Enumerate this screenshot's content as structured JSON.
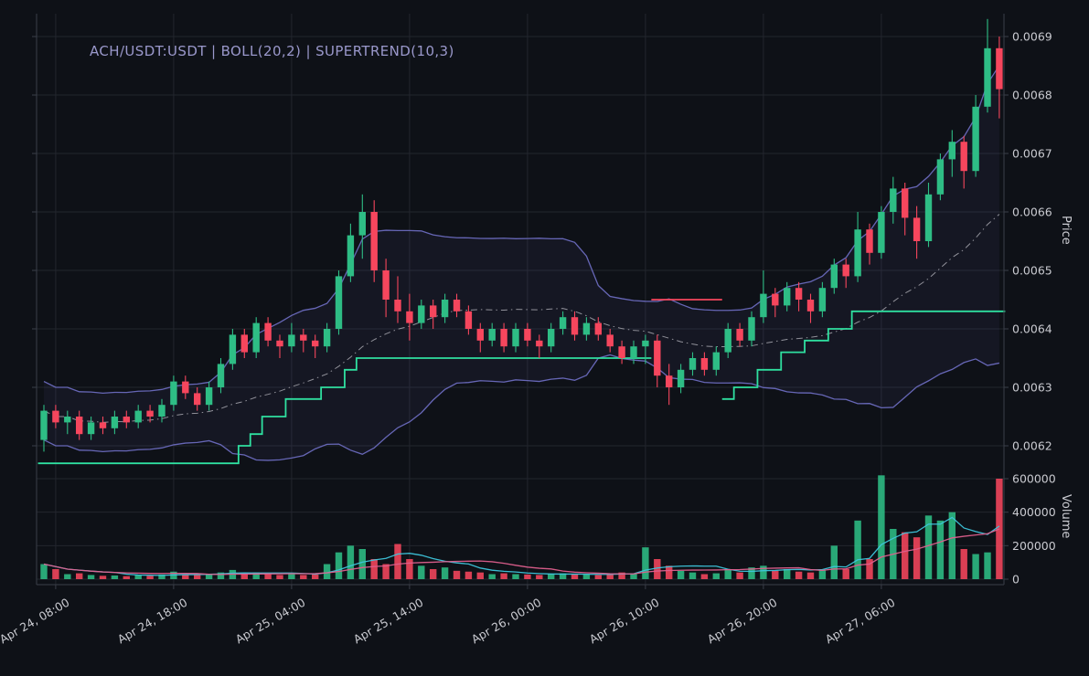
{
  "title": "ACH/USDT:USDT | BOLL(20,2) | SUPERTREND(10,3)",
  "colors": {
    "background": "#0e1117",
    "grid": "#23262e",
    "spine": "#3a3e48",
    "axis_text": "#c9cad0",
    "title_text": "#9a98cb",
    "up": "#2ebd85",
    "down": "#f6465d",
    "bollinger": "#6b6bbf",
    "bollinger_fill": "rgba(110,110,200,0.07)",
    "middle_band": "#b0b0b8",
    "supertrend_up": "#2fe0a0",
    "supertrend_down": "#f6465d",
    "volume_ma1": "#3ec6dc",
    "volume_ma2": "#e0608e"
  },
  "chart_data": {
    "type": "candlestick",
    "title": "ACH/USDT:USDT | BOLL(20,2) | SUPERTREND(10,3)",
    "ylabel": "Price",
    "ylabel_volume": "Volume",
    "grid": true,
    "price_ticks": [
      0.0062,
      0.0063,
      0.0064,
      0.0065,
      0.0066,
      0.0067,
      0.0068,
      0.0069
    ],
    "volume_ticks": [
      0,
      200000,
      400000,
      600000
    ],
    "x_ticks": [
      {
        "index": 1,
        "label": "Apr 24, 08:00"
      },
      {
        "index": 11,
        "label": "Apr 24, 18:00"
      },
      {
        "index": 21,
        "label": "Apr 25, 04:00"
      },
      {
        "index": 31,
        "label": "Apr 25, 14:00"
      },
      {
        "index": 41,
        "label": "Apr 26, 00:00"
      },
      {
        "index": 51,
        "label": "Apr 26, 10:00"
      },
      {
        "index": 61,
        "label": "Apr 26, 20:00"
      },
      {
        "index": 71,
        "label": "Apr 27, 06:00"
      }
    ],
    "candles": [
      [
        "Apr 24 07:00",
        0.00621,
        0.00627,
        0.00619,
        0.00626,
        90000
      ],
      [
        "Apr 24 08:00",
        0.00626,
        0.00627,
        0.00623,
        0.00624,
        60000
      ],
      [
        "Apr 24 09:00",
        0.00624,
        0.00626,
        0.00622,
        0.00625,
        30000
      ],
      [
        "Apr 24 10:00",
        0.00625,
        0.00626,
        0.00621,
        0.00622,
        35000
      ],
      [
        "Apr 24 11:00",
        0.00622,
        0.00625,
        0.00621,
        0.00624,
        25000
      ],
      [
        "Apr 24 12:00",
        0.00624,
        0.00625,
        0.00622,
        0.00623,
        20000
      ],
      [
        "Apr 24 13:00",
        0.00623,
        0.00626,
        0.00622,
        0.00625,
        22000
      ],
      [
        "Apr 24 14:00",
        0.00625,
        0.00626,
        0.00623,
        0.00624,
        18000
      ],
      [
        "Apr 24 15:00",
        0.00624,
        0.00627,
        0.00623,
        0.00626,
        25000
      ],
      [
        "Apr 24 16:00",
        0.00626,
        0.00627,
        0.00624,
        0.00625,
        20000
      ],
      [
        "Apr 24 17:00",
        0.00625,
        0.00628,
        0.00624,
        0.00627,
        28000
      ],
      [
        "Apr 24 18:00",
        0.00627,
        0.00632,
        0.00626,
        0.00631,
        45000
      ],
      [
        "Apr 24 19:00",
        0.00631,
        0.00632,
        0.00628,
        0.00629,
        30000
      ],
      [
        "Apr 24 20:00",
        0.00629,
        0.0063,
        0.00626,
        0.00627,
        25000
      ],
      [
        "Apr 24 21:00",
        0.00627,
        0.00631,
        0.00626,
        0.0063,
        30000
      ],
      [
        "Apr 24 22:00",
        0.0063,
        0.00635,
        0.00629,
        0.00634,
        40000
      ],
      [
        "Apr 24 23:00",
        0.00634,
        0.0064,
        0.00633,
        0.00639,
        55000
      ],
      [
        "Apr 25 00:00",
        0.00639,
        0.0064,
        0.00635,
        0.00636,
        35000
      ],
      [
        "Apr 25 01:00",
        0.00636,
        0.00642,
        0.00635,
        0.00641,
        40000
      ],
      [
        "Apr 25 02:00",
        0.00641,
        0.00642,
        0.00637,
        0.00638,
        30000
      ],
      [
        "Apr 25 03:00",
        0.00638,
        0.00639,
        0.00635,
        0.00637,
        25000
      ],
      [
        "Apr 25 04:00",
        0.00637,
        0.00641,
        0.00636,
        0.00639,
        30000
      ],
      [
        "Apr 25 05:00",
        0.00639,
        0.0064,
        0.00636,
        0.00638,
        25000
      ],
      [
        "Apr 25 06:00",
        0.00638,
        0.00639,
        0.00635,
        0.00637,
        28000
      ],
      [
        "Apr 25 07:00",
        0.00637,
        0.00641,
        0.00636,
        0.0064,
        90000
      ],
      [
        "Apr 25 08:00",
        0.0064,
        0.0065,
        0.00639,
        0.00649,
        160000
      ],
      [
        "Apr 25 09:00",
        0.00649,
        0.00658,
        0.00648,
        0.00656,
        200000
      ],
      [
        "Apr 25 10:00",
        0.00656,
        0.00663,
        0.00652,
        0.0066,
        180000
      ],
      [
        "Apr 25 11:00",
        0.0066,
        0.00662,
        0.00648,
        0.0065,
        120000
      ],
      [
        "Apr 25 12:00",
        0.0065,
        0.00652,
        0.00642,
        0.00645,
        90000
      ],
      [
        "Apr 25 13:00",
        0.00645,
        0.00649,
        0.00641,
        0.00643,
        210000
      ],
      [
        "Apr 25 14:00",
        0.00643,
        0.00646,
        0.00638,
        0.00641,
        120000
      ],
      [
        "Apr 25 15:00",
        0.00641,
        0.00645,
        0.0064,
        0.00644,
        80000
      ],
      [
        "Apr 25 16:00",
        0.00644,
        0.00645,
        0.0064,
        0.00642,
        60000
      ],
      [
        "Apr 25 17:00",
        0.00642,
        0.00646,
        0.00641,
        0.00645,
        70000
      ],
      [
        "Apr 25 18:00",
        0.00645,
        0.00646,
        0.00642,
        0.00643,
        50000
      ],
      [
        "Apr 25 19:00",
        0.00643,
        0.00644,
        0.00639,
        0.0064,
        45000
      ],
      [
        "Apr 25 20:00",
        0.0064,
        0.00641,
        0.00636,
        0.00638,
        40000
      ],
      [
        "Apr 25 21:00",
        0.00638,
        0.00641,
        0.00637,
        0.0064,
        30000
      ],
      [
        "Apr 25 22:00",
        0.0064,
        0.00641,
        0.00636,
        0.00637,
        35000
      ],
      [
        "Apr 25 23:00",
        0.00637,
        0.00641,
        0.00636,
        0.0064,
        30000
      ],
      [
        "Apr 26 00:00",
        0.0064,
        0.00641,
        0.00637,
        0.00638,
        28000
      ],
      [
        "Apr 26 01:00",
        0.00638,
        0.00639,
        0.00635,
        0.00637,
        25000
      ],
      [
        "Apr 26 02:00",
        0.00637,
        0.00641,
        0.00636,
        0.0064,
        30000
      ],
      [
        "Apr 26 03:00",
        0.0064,
        0.00643,
        0.00639,
        0.00642,
        35000
      ],
      [
        "Apr 26 04:00",
        0.00642,
        0.00643,
        0.00638,
        0.00639,
        30000
      ],
      [
        "Apr 26 05:00",
        0.00639,
        0.00642,
        0.00638,
        0.00641,
        28000
      ],
      [
        "Apr 26 06:00",
        0.00641,
        0.00642,
        0.00638,
        0.00639,
        25000
      ],
      [
        "Apr 26 07:00",
        0.00639,
        0.0064,
        0.00636,
        0.00637,
        30000
      ],
      [
        "Apr 26 08:00",
        0.00637,
        0.00638,
        0.00634,
        0.00635,
        40000
      ],
      [
        "Apr 26 09:00",
        0.00635,
        0.00638,
        0.00634,
        0.00637,
        35000
      ],
      [
        "Apr 26 10:00",
        0.00637,
        0.00639,
        0.00634,
        0.00638,
        190000
      ],
      [
        "Apr 26 11:00",
        0.00638,
        0.00639,
        0.0063,
        0.00632,
        120000
      ],
      [
        "Apr 26 12:00",
        0.00632,
        0.00634,
        0.00627,
        0.0063,
        80000
      ],
      [
        "Apr 26 13:00",
        0.0063,
        0.00634,
        0.00629,
        0.00633,
        50000
      ],
      [
        "Apr 26 14:00",
        0.00633,
        0.00636,
        0.00632,
        0.00635,
        40000
      ],
      [
        "Apr 26 15:00",
        0.00635,
        0.00636,
        0.00632,
        0.00633,
        30000
      ],
      [
        "Apr 26 16:00",
        0.00633,
        0.00637,
        0.00632,
        0.00636,
        35000
      ],
      [
        "Apr 26 17:00",
        0.00636,
        0.00641,
        0.00635,
        0.0064,
        60000
      ],
      [
        "Apr 26 18:00",
        0.0064,
        0.00641,
        0.00637,
        0.00638,
        40000
      ],
      [
        "Apr 26 19:00",
        0.00638,
        0.00643,
        0.00637,
        0.00642,
        70000
      ],
      [
        "Apr 26 20:00",
        0.00642,
        0.0065,
        0.00641,
        0.00646,
        80000
      ],
      [
        "Apr 26 21:00",
        0.00646,
        0.00647,
        0.00642,
        0.00644,
        50000
      ],
      [
        "Apr 26 22:00",
        0.00644,
        0.00648,
        0.00643,
        0.00647,
        60000
      ],
      [
        "Apr 26 23:00",
        0.00647,
        0.00648,
        0.00643,
        0.00645,
        45000
      ],
      [
        "Apr 27 00:00",
        0.00645,
        0.00646,
        0.00641,
        0.00643,
        40000
      ],
      [
        "Apr 27 01:00",
        0.00643,
        0.00648,
        0.00642,
        0.00647,
        55000
      ],
      [
        "Apr 27 02:00",
        0.00647,
        0.00652,
        0.00646,
        0.00651,
        200000
      ],
      [
        "Apr 27 03:00",
        0.00651,
        0.00652,
        0.00647,
        0.00649,
        60000
      ],
      [
        "Apr 27 04:00",
        0.00649,
        0.0066,
        0.00648,
        0.00657,
        350000
      ],
      [
        "Apr 27 05:00",
        0.00657,
        0.00658,
        0.00651,
        0.00653,
        120000
      ],
      [
        "Apr 27 06:00",
        0.00653,
        0.00661,
        0.00652,
        0.0066,
        620000
      ],
      [
        "Apr 27 07:00",
        0.0066,
        0.00666,
        0.00658,
        0.00664,
        300000
      ],
      [
        "Apr 27 08:00",
        0.00664,
        0.00665,
        0.00656,
        0.00659,
        280000
      ],
      [
        "Apr 27 09:00",
        0.00659,
        0.00661,
        0.00652,
        0.00655,
        250000
      ],
      [
        "Apr 27 10:00",
        0.00655,
        0.00665,
        0.00654,
        0.00663,
        380000
      ],
      [
        "Apr 27 11:00",
        0.00663,
        0.0067,
        0.00662,
        0.00669,
        350000
      ],
      [
        "Apr 27 12:00",
        0.00669,
        0.00674,
        0.00666,
        0.00672,
        400000
      ],
      [
        "Apr 27 13:00",
        0.00672,
        0.00673,
        0.00664,
        0.00667,
        180000
      ],
      [
        "Apr 27 14:00",
        0.00667,
        0.0068,
        0.00666,
        0.00678,
        150000
      ],
      [
        "Apr 27 15:00",
        0.00678,
        0.00693,
        0.00677,
        0.00688,
        160000
      ],
      [
        "Apr 27 16:00",
        0.00688,
        0.0069,
        0.00676,
        0.00681,
        600000
      ]
    ],
    "indicators": {
      "bollinger": {
        "window": 20,
        "std_mult": 2
      },
      "supertrend": {
        "period": 10,
        "multiplier": 3,
        "trend": "uuuuuuuuuuuuuuuuuuuuuuuuuuuuuuuuuuuuuuuuuuuuuuuuuuuudddddduuuuuuuuuuuuuuuuuuuuuuuu",
        "values": [
          0.00617,
          0.00617,
          0.00617,
          0.00617,
          0.00617,
          0.00617,
          0.00617,
          0.00617,
          0.00617,
          0.00617,
          0.00617,
          0.00617,
          0.00617,
          0.00617,
          0.00617,
          0.00617,
          0.00617,
          0.0062,
          0.00622,
          0.00625,
          0.00625,
          0.00628,
          0.00628,
          0.00628,
          0.0063,
          0.0063,
          0.00633,
          0.00635,
          0.00635,
          0.00635,
          0.00635,
          0.00635,
          0.00635,
          0.00635,
          0.00635,
          0.00635,
          0.00635,
          0.00635,
          0.00635,
          0.00635,
          0.00635,
          0.00635,
          0.00635,
          0.00635,
          0.00635,
          0.00635,
          0.00635,
          0.00635,
          0.00635,
          0.00635,
          0.00635,
          0.00635,
          0.00645,
          0.00645,
          0.00645,
          0.00645,
          0.00645,
          0.00645,
          0.00628,
          0.0063,
          0.0063,
          0.00633,
          0.00633,
          0.00636,
          0.00636,
          0.00638,
          0.00638,
          0.0064,
          0.0064,
          0.00643,
          0.00643,
          0.00643,
          0.00643,
          0.00643,
          0.00643,
          0.00643,
          0.00643,
          0.00643,
          0.00643,
          0.00643,
          0.00643,
          0.00643
        ]
      },
      "volume_ma": [
        {
          "window": 7,
          "color_key": "volume_ma1"
        },
        {
          "window": 14,
          "color_key": "volume_ma2"
        }
      ]
    }
  }
}
